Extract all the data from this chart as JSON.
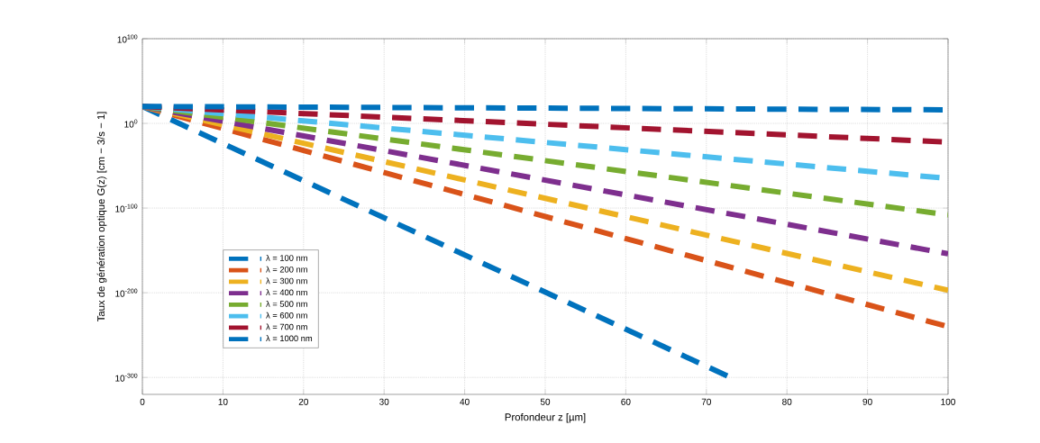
{
  "chart_data": {
    "type": "line",
    "xlabel": "Profondeur z [µm]",
    "ylabel": "Taux de génération optique G(z) [cm − 3/s − 1]",
    "xlim": [
      0,
      100
    ],
    "xticks": [
      0,
      10,
      20,
      30,
      40,
      50,
      60,
      70,
      80,
      90,
      100
    ],
    "ylim": [
      1e-320,
      1e+100
    ],
    "log": "y",
    "yticks": [
      {
        "value": 1e-300,
        "label": "10$^{-300}$"
      },
      {
        "value": 1e-200,
        "label": "10$^{-200}$"
      },
      {
        "value": 1e-100,
        "label": "10$^{-100}$"
      },
      {
        "value": 1,
        "label": "10$^{0}$"
      },
      {
        "value": 1e+100,
        "label": "10$^{100}$"
      }
    ],
    "grid": true,
    "legend": "bottom left",
    "marker": "none",
    "line_style": "dashed",
    "series": [
      {
        "name": "λ = 100 nm",
        "color": "#0072bd",
        "x": [
          0,
          73
        ],
        "values": [
          1e+20,
          1e-300
        ]
      },
      {
        "name": "λ = 200 nm",
        "color": "#d95319",
        "x": [
          0,
          100
        ],
        "values": [
          1e+20,
          1e-240
        ]
      },
      {
        "name": "λ = 300 nm",
        "color": "#edb120",
        "x": [
          0,
          100
        ],
        "values": [
          1e+20,
          1e-197
        ]
      },
      {
        "name": "λ = 400 nm",
        "color": "#7e2f8e",
        "x": [
          0,
          100
        ],
        "values": [
          1e+20,
          1e-154
        ]
      },
      {
        "name": "λ = 500 nm",
        "color": "#77ac30",
        "x": [
          0,
          100
        ],
        "values": [
          1e+20,
          1e-108
        ]
      },
      {
        "name": "λ = 600 nm",
        "color": "#4dbeee",
        "x": [
          0,
          100
        ],
        "values": [
          1e+20,
          1e-65
        ]
      },
      {
        "name": "λ = 700 nm",
        "color": "#a2142f",
        "x": [
          0,
          100
        ],
        "values": [
          1e+20,
          1e-22
        ]
      },
      {
        "name": "λ = 1000 nm",
        "color": "#0072bd",
        "x": [
          0,
          100
        ],
        "values": [
          1e+20,
          1e+16
        ]
      }
    ]
  }
}
